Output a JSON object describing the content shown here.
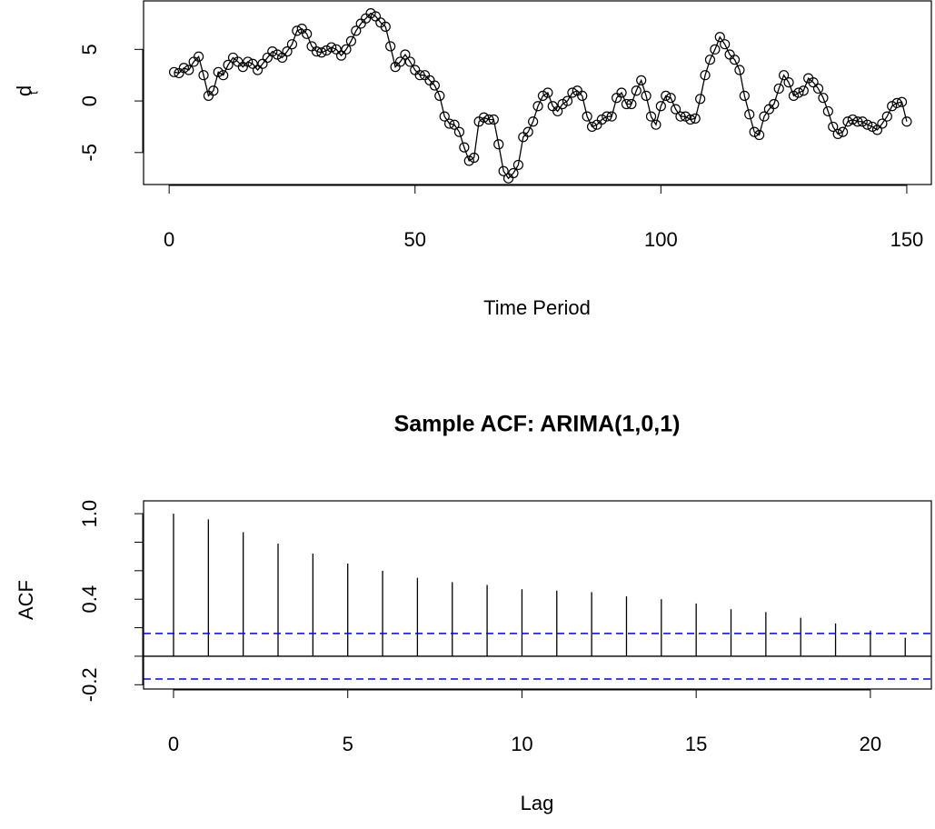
{
  "chart_data": [
    {
      "type": "line",
      "xlabel": "Time Period",
      "ylabel": "d",
      "ylabel_subscript": "t",
      "color": "#000000",
      "marker": "circle",
      "x": [
        1,
        2,
        3,
        4,
        5,
        6,
        7,
        8,
        9,
        10,
        11,
        12,
        13,
        14,
        15,
        16,
        17,
        18,
        19,
        20,
        21,
        22,
        23,
        24,
        25,
        26,
        27,
        28,
        29,
        30,
        31,
        32,
        33,
        34,
        35,
        36,
        37,
        38,
        39,
        40,
        41,
        42,
        43,
        44,
        45,
        46,
        47,
        48,
        49,
        50,
        51,
        52,
        53,
        54,
        55,
        56,
        57,
        58,
        59,
        60,
        61,
        62,
        63,
        64,
        65,
        66,
        67,
        68,
        69,
        70,
        71,
        72,
        73,
        74,
        75,
        76,
        77,
        78,
        79,
        80,
        81,
        82,
        83,
        84,
        85,
        86,
        87,
        88,
        89,
        90,
        91,
        92,
        93,
        94,
        95,
        96,
        97,
        98,
        99,
        100,
        101,
        102,
        103,
        104,
        105,
        106,
        107,
        108,
        109,
        110,
        111,
        112,
        113,
        114,
        115,
        116,
        117,
        118,
        119,
        120,
        121,
        122,
        123,
        124,
        125,
        126,
        127,
        128,
        129,
        130,
        131,
        132,
        133,
        134,
        135,
        136,
        137,
        138,
        139,
        140,
        141,
        142,
        143,
        144,
        145,
        146,
        147,
        148,
        149,
        150
      ],
      "values": [
        2.8,
        2.7,
        3.2,
        3.0,
        3.8,
        4.3,
        2.5,
        0.5,
        1.0,
        2.8,
        2.5,
        3.5,
        4.2,
        3.8,
        3.3,
        3.8,
        3.6,
        3.0,
        3.6,
        4.2,
        4.8,
        4.5,
        4.2,
        4.8,
        5.5,
        6.8,
        7.0,
        6.5,
        5.3,
        4.8,
        4.7,
        4.9,
        5.2,
        5.0,
        4.4,
        5.0,
        5.8,
        6.8,
        7.5,
        8.0,
        8.5,
        8.2,
        7.6,
        7.2,
        5.3,
        3.3,
        3.8,
        4.5,
        3.8,
        3.0,
        2.5,
        2.5,
        2.0,
        1.5,
        0.5,
        -1.5,
        -2.2,
        -2.3,
        -3.0,
        -4.5,
        -5.8,
        -5.5,
        -2.0,
        -1.6,
        -1.8,
        -1.8,
        -4.2,
        -6.8,
        -7.5,
        -7.0,
        -6.2,
        -3.5,
        -3.0,
        -2.0,
        -0.5,
        0.5,
        0.8,
        -0.5,
        -1.0,
        -0.3,
        0.0,
        0.8,
        1.0,
        0.5,
        -1.5,
        -2.5,
        -2.3,
        -1.8,
        -1.5,
        -1.5,
        0.3,
        0.8,
        -0.3,
        -0.3,
        1.0,
        2.0,
        0.5,
        -1.5,
        -2.3,
        -0.5,
        0.5,
        0.3,
        -0.8,
        -1.5,
        -1.5,
        -1.8,
        -1.7,
        0.2,
        2.5,
        4.0,
        5.0,
        6.2,
        5.5,
        4.5,
        4.0,
        3.0,
        0.5,
        -1.3,
        -3.0,
        -3.3,
        -1.5,
        -0.8,
        -0.3,
        1.2,
        2.5,
        1.8,
        0.5,
        0.8,
        1.0,
        2.2,
        1.8,
        1.2,
        0.3,
        -1.0,
        -2.5,
        -3.2,
        -3.0,
        -2.0,
        -1.8,
        -2.0,
        -2.0,
        -2.3,
        -2.5,
        -2.8,
        -2.2,
        -1.5,
        -0.5,
        -0.2,
        -0.1,
        -2.0
      ],
      "xlim": [
        -5.2,
        155
      ],
      "xticks": [
        0,
        50,
        100,
        150
      ],
      "ylim": [
        -8.1,
        9.7
      ],
      "yticks": [
        -5,
        0,
        5
      ]
    },
    {
      "type": "acf",
      "title": "Sample ACF: ARIMA(1,0,1)",
      "xlabel": "Lag",
      "ylabel": "ACF",
      "color": "#000000",
      "x": [
        0,
        1,
        2,
        3,
        4,
        5,
        6,
        7,
        8,
        9,
        10,
        11,
        12,
        13,
        14,
        15,
        16,
        17,
        18,
        19,
        20,
        21
      ],
      "values": [
        1.0,
        0.96,
        0.87,
        0.79,
        0.72,
        0.65,
        0.6,
        0.55,
        0.52,
        0.5,
        0.47,
        0.46,
        0.45,
        0.42,
        0.4,
        0.37,
        0.33,
        0.31,
        0.27,
        0.23,
        0.18,
        0.13
      ],
      "ci_upper": 0.16,
      "ci_lower": -0.16,
      "ci_color": "#0000ff",
      "xlim": [
        -0.86,
        21.75
      ],
      "xticks": [
        0,
        5,
        10,
        15,
        20
      ],
      "ylim": [
        -0.23,
        1.09
      ],
      "yticks": [
        -0.2,
        0.4,
        {
          "value": 1,
          "label": "1.0"
        }
      ],
      "yminor_ticks": [
        0,
        0.2,
        0.6,
        0.8
      ]
    }
  ]
}
